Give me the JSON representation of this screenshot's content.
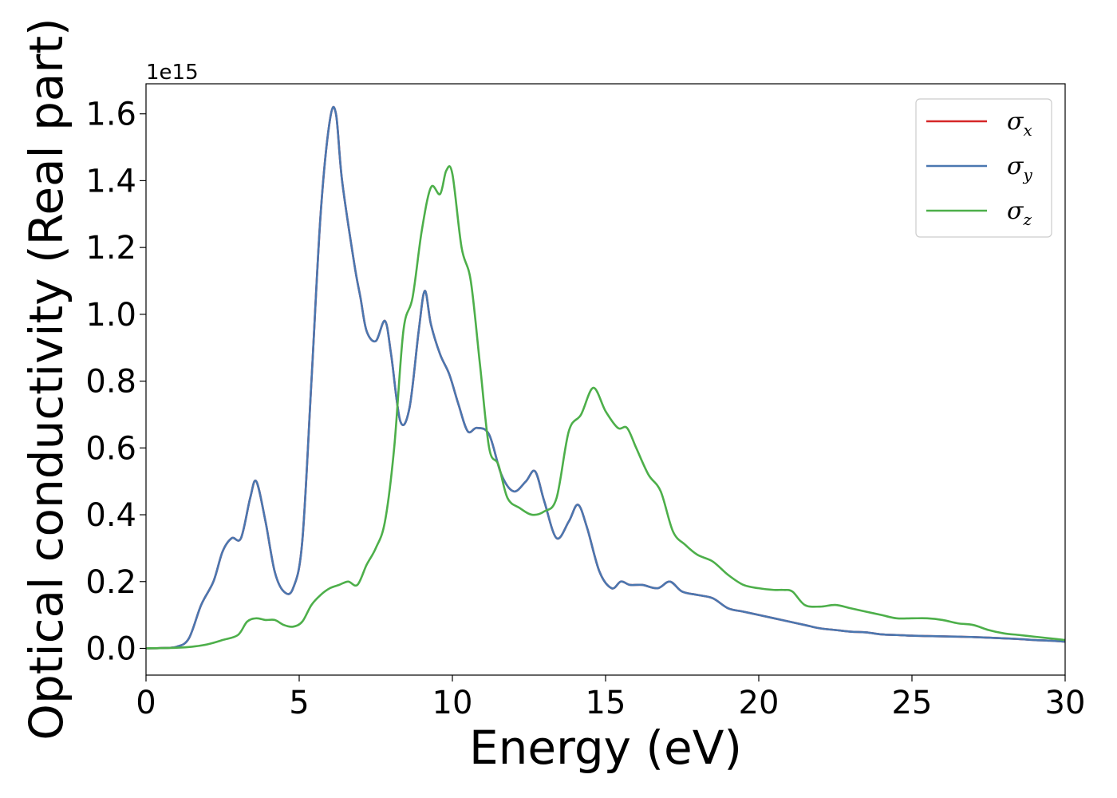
{
  "chart_data": {
    "type": "line",
    "xlabel": "Energy (eV)",
    "ylabel": "Optical conductivity (Real part)",
    "offset_text": "1e15",
    "xlim": [
      0,
      30
    ],
    "ylim": [
      -0.08,
      1.69
    ],
    "x_ticks": [
      0,
      5,
      10,
      15,
      20,
      25,
      30
    ],
    "x_tick_labels": [
      "0",
      "5",
      "10",
      "15",
      "20",
      "25",
      "30"
    ],
    "y_ticks": [
      0.0,
      0.2,
      0.4,
      0.6,
      0.8,
      1.0,
      1.2,
      1.4,
      1.6
    ],
    "y_tick_labels": [
      "0.0",
      "0.2",
      "0.4",
      "0.6",
      "0.8",
      "1.0",
      "1.2",
      "1.4",
      "1.6"
    ],
    "y_scale_factor": "1e15",
    "grid": false,
    "legend_position": "upper right",
    "legend": [
      {
        "base": "σ",
        "sub": "x",
        "color": "#d62728"
      },
      {
        "base": "σ",
        "sub": "y",
        "color": "#4a77b0"
      },
      {
        "base": "σ",
        "sub": "z",
        "color": "#4daf4a"
      }
    ],
    "series": [
      {
        "name": "σx",
        "color": "#d62728",
        "x": [
          0,
          0.5,
          1.0,
          1.4,
          1.8,
          2.2,
          2.5,
          2.8,
          3.1,
          3.4,
          3.6,
          3.9,
          4.2,
          4.5,
          4.8,
          5.1,
          5.4,
          5.7,
          6.0,
          6.2,
          6.4,
          6.8,
          7.0,
          7.2,
          7.5,
          7.8,
          8.0,
          8.3,
          8.6,
          8.9,
          9.1,
          9.3,
          9.6,
          9.9,
          10.2,
          10.5,
          10.8,
          11.2,
          11.6,
          12.0,
          12.4,
          12.7,
          13.0,
          13.4,
          13.8,
          14.1,
          14.4,
          14.8,
          15.2,
          15.5,
          15.8,
          16.2,
          16.7,
          17.1,
          17.5,
          18.0,
          18.5,
          19.0,
          19.5,
          20.0,
          20.5,
          21.0,
          21.5,
          22.0,
          22.5,
          23.0,
          23.5,
          24.0,
          24.5,
          25.0,
          25.5,
          26.0,
          26.5,
          27.0,
          27.5,
          28.0,
          28.5,
          29.0,
          29.5,
          30.0
        ],
        "values": [
          0.0,
          0.001,
          0.005,
          0.03,
          0.13,
          0.2,
          0.29,
          0.33,
          0.33,
          0.45,
          0.5,
          0.38,
          0.23,
          0.17,
          0.18,
          0.32,
          0.8,
          1.3,
          1.58,
          1.6,
          1.4,
          1.15,
          1.05,
          0.95,
          0.92,
          0.98,
          0.88,
          0.68,
          0.72,
          0.95,
          1.07,
          0.97,
          0.88,
          0.82,
          0.73,
          0.65,
          0.66,
          0.64,
          0.52,
          0.47,
          0.5,
          0.53,
          0.44,
          0.33,
          0.38,
          0.43,
          0.36,
          0.23,
          0.18,
          0.2,
          0.19,
          0.19,
          0.18,
          0.2,
          0.17,
          0.16,
          0.15,
          0.12,
          0.11,
          0.1,
          0.09,
          0.08,
          0.07,
          0.06,
          0.055,
          0.05,
          0.048,
          0.042,
          0.04,
          0.038,
          0.037,
          0.036,
          0.035,
          0.034,
          0.032,
          0.03,
          0.028,
          0.025,
          0.023,
          0.02
        ]
      },
      {
        "name": "σy",
        "color": "#4a77b0",
        "x": [
          0,
          0.5,
          1.0,
          1.4,
          1.8,
          2.2,
          2.5,
          2.8,
          3.1,
          3.4,
          3.6,
          3.9,
          4.2,
          4.5,
          4.8,
          5.1,
          5.4,
          5.7,
          6.0,
          6.2,
          6.4,
          6.8,
          7.0,
          7.2,
          7.5,
          7.8,
          8.0,
          8.3,
          8.6,
          8.9,
          9.1,
          9.3,
          9.6,
          9.9,
          10.2,
          10.5,
          10.8,
          11.2,
          11.6,
          12.0,
          12.4,
          12.7,
          13.0,
          13.4,
          13.8,
          14.1,
          14.4,
          14.8,
          15.2,
          15.5,
          15.8,
          16.2,
          16.7,
          17.1,
          17.5,
          18.0,
          18.5,
          19.0,
          19.5,
          20.0,
          20.5,
          21.0,
          21.5,
          22.0,
          22.5,
          23.0,
          23.5,
          24.0,
          24.5,
          25.0,
          25.5,
          26.0,
          26.5,
          27.0,
          27.5,
          28.0,
          28.5,
          29.0,
          29.5,
          30.0
        ],
        "values": [
          0.0,
          0.001,
          0.005,
          0.03,
          0.13,
          0.2,
          0.29,
          0.33,
          0.33,
          0.45,
          0.5,
          0.38,
          0.23,
          0.17,
          0.18,
          0.32,
          0.8,
          1.3,
          1.58,
          1.6,
          1.4,
          1.15,
          1.05,
          0.95,
          0.92,
          0.98,
          0.88,
          0.68,
          0.72,
          0.95,
          1.07,
          0.97,
          0.88,
          0.82,
          0.73,
          0.65,
          0.66,
          0.64,
          0.52,
          0.47,
          0.5,
          0.53,
          0.44,
          0.33,
          0.38,
          0.43,
          0.36,
          0.23,
          0.18,
          0.2,
          0.19,
          0.19,
          0.18,
          0.2,
          0.17,
          0.16,
          0.15,
          0.12,
          0.11,
          0.1,
          0.09,
          0.08,
          0.07,
          0.06,
          0.055,
          0.05,
          0.048,
          0.042,
          0.04,
          0.038,
          0.037,
          0.036,
          0.035,
          0.034,
          0.032,
          0.03,
          0.028,
          0.025,
          0.023,
          0.02
        ]
      },
      {
        "name": "σz",
        "color": "#4daf4a",
        "x": [
          0,
          1.0,
          1.5,
          2.0,
          2.5,
          3.0,
          3.3,
          3.6,
          3.9,
          4.2,
          4.5,
          4.8,
          5.1,
          5.4,
          5.7,
          6.0,
          6.3,
          6.6,
          6.9,
          7.2,
          7.5,
          7.8,
          8.1,
          8.4,
          8.7,
          9.0,
          9.3,
          9.6,
          9.8,
          10.0,
          10.3,
          10.6,
          10.9,
          11.2,
          11.5,
          11.8,
          12.2,
          12.6,
          13.0,
          13.4,
          13.8,
          14.2,
          14.6,
          15.0,
          15.4,
          15.7,
          16.0,
          16.4,
          16.8,
          17.2,
          17.6,
          18.0,
          18.5,
          19.0,
          19.5,
          20.0,
          20.5,
          20.8,
          21.1,
          21.5,
          22.0,
          22.5,
          23.0,
          23.5,
          24.0,
          24.5,
          25.0,
          25.5,
          26.0,
          26.5,
          27.0,
          27.5,
          28.0,
          28.5,
          29.0,
          29.5,
          30.0
        ],
        "values": [
          0.0,
          0.002,
          0.005,
          0.012,
          0.025,
          0.04,
          0.08,
          0.09,
          0.085,
          0.085,
          0.07,
          0.065,
          0.08,
          0.13,
          0.16,
          0.18,
          0.19,
          0.2,
          0.19,
          0.25,
          0.3,
          0.38,
          0.6,
          0.95,
          1.05,
          1.25,
          1.38,
          1.36,
          1.43,
          1.42,
          1.2,
          1.1,
          0.85,
          0.6,
          0.55,
          0.45,
          0.42,
          0.4,
          0.41,
          0.45,
          0.65,
          0.7,
          0.78,
          0.71,
          0.66,
          0.66,
          0.6,
          0.52,
          0.47,
          0.35,
          0.31,
          0.28,
          0.26,
          0.22,
          0.19,
          0.18,
          0.175,
          0.175,
          0.17,
          0.13,
          0.125,
          0.13,
          0.12,
          0.11,
          0.1,
          0.09,
          0.09,
          0.09,
          0.085,
          0.075,
          0.07,
          0.055,
          0.045,
          0.04,
          0.035,
          0.03,
          0.025
        ]
      }
    ]
  }
}
